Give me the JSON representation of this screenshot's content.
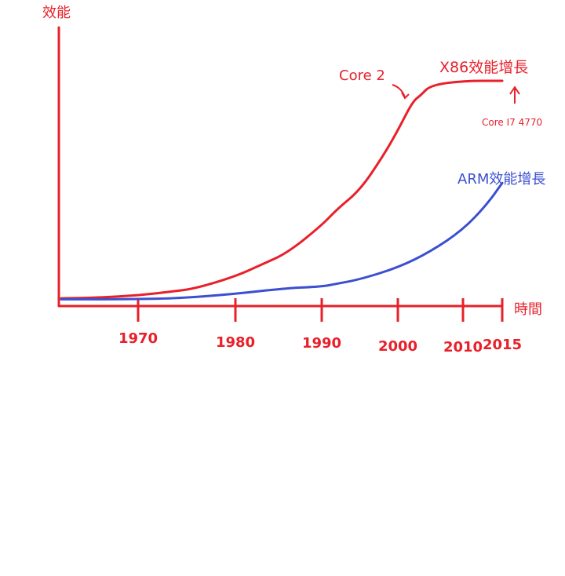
{
  "colors": {
    "x86": "#e8202a",
    "arm": "#3c4fd0",
    "axis": "#e8202a"
  },
  "chart_data": {
    "type": "line",
    "ylabel": "效能",
    "xlabel": "時間",
    "x_ticks": [
      "1970",
      "1980",
      "1990",
      "2000",
      "2010",
      "2015"
    ],
    "series": [
      {
        "name": "X86效能增長",
        "x": [
          1962,
          1966,
          1970,
          1974,
          1976,
          1980,
          1983,
          1986,
          1990,
          1992,
          1995,
          1998,
          2000,
          2002.3,
          2003.5,
          2005,
          2010,
          2015
        ],
        "y": [
          1,
          1.5,
          3,
          6,
          8,
          16,
          24,
          32,
          51,
          62,
          75,
          98,
          116,
          136,
          140,
          147,
          150,
          150
        ]
      },
      {
        "name": "ARM效能增長",
        "x": [
          1962,
          1966,
          1970,
          1974,
          1980,
          1986,
          1990,
          1992,
          1995,
          2000,
          2005,
          2010,
          2013,
          2015
        ],
        "y": [
          0.3,
          0.3,
          0.5,
          1,
          4,
          8,
          9,
          11,
          14,
          22,
          33,
          48,
          65,
          80
        ]
      }
    ],
    "annotations": [
      {
        "text": "Core 2"
      },
      {
        "text": "Core I7 4770"
      }
    ]
  }
}
